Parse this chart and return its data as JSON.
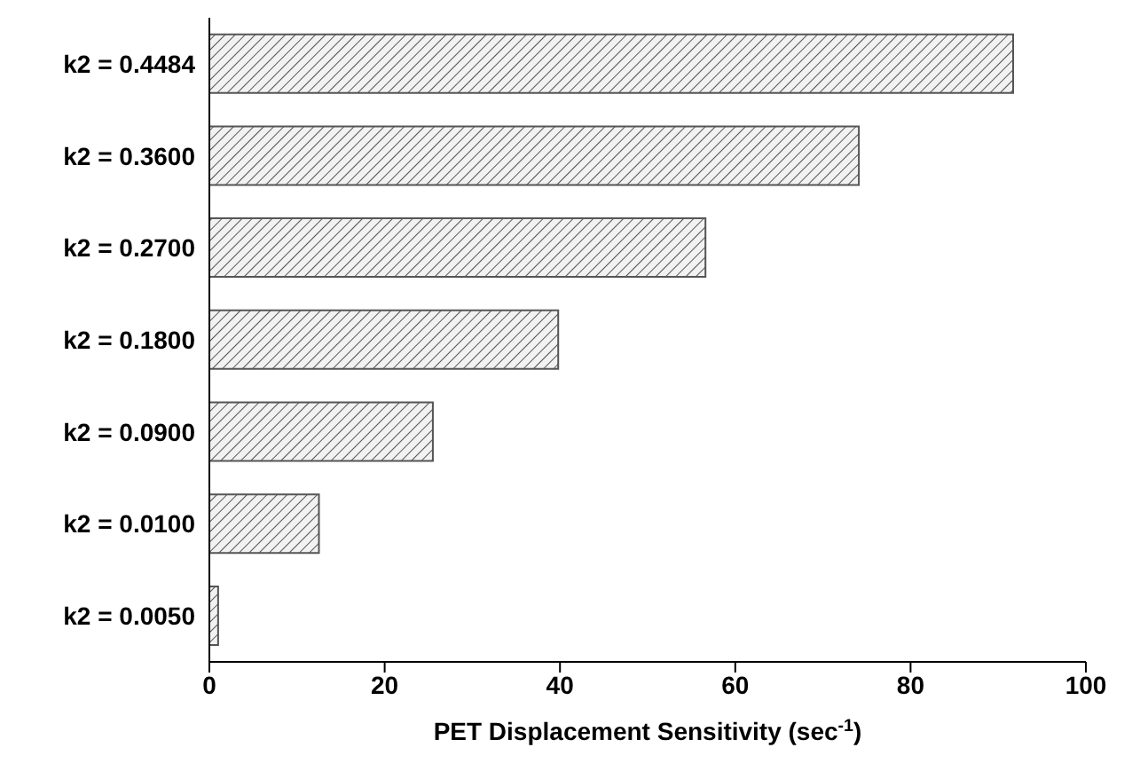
{
  "chart_data": {
    "type": "bar",
    "orientation": "horizontal",
    "xlabel": "PET Displacement Sensitivity (sec$^{-1}$)",
    "categories": [
      "k2 = 0.4484",
      "k2 = 0.3600",
      "k2 = 0.2700",
      "k2 = 0.1800",
      "k2 = 0.0900",
      "k2 = 0.0100",
      "k2 = 0.0050"
    ],
    "values": [
      91.7,
      74.1,
      56.6,
      39.8,
      25.5,
      12.5,
      1.0
    ],
    "color": "#555555",
    "xlim": [
      0,
      100
    ],
    "xticks": [
      0,
      20,
      40,
      60,
      80,
      100
    ],
    "grid": false,
    "legend": false
  }
}
